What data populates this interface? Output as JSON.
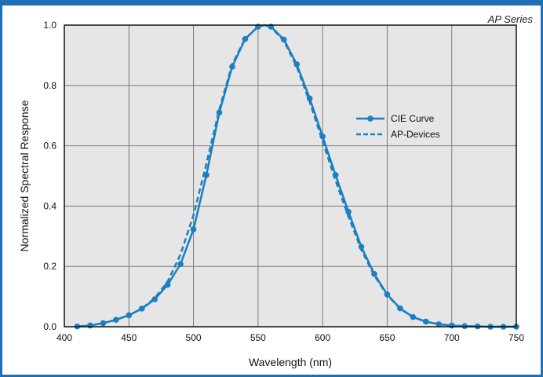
{
  "header": {
    "series_tag": "AP Series"
  },
  "colors": {
    "frame": "#1f6fb2",
    "series": "#1b7fc1",
    "plot_bg": "#e6e6e6",
    "grid": "#7a7a7a"
  },
  "chart_data": {
    "type": "line",
    "xlabel": "Wavelength (nm)",
    "ylabel": "Normalized Spectral Response",
    "xlim": [
      400,
      750
    ],
    "ylim": [
      0.0,
      1.0
    ],
    "xticks": [
      "400",
      "450",
      "500",
      "550",
      "600",
      "650",
      "700",
      "750"
    ],
    "yticks": [
      "0.0",
      "0.2",
      "0.4",
      "0.6",
      "0.8",
      "1.0"
    ],
    "grid": true,
    "legend_position": "right",
    "series": [
      {
        "name": "CIE Curve",
        "style": "solid-markers",
        "x": [
          410,
          420,
          430,
          440,
          450,
          460,
          470,
          480,
          490,
          500,
          510,
          520,
          530,
          540,
          550,
          555,
          560,
          570,
          580,
          590,
          600,
          610,
          620,
          630,
          640,
          650,
          660,
          670,
          680,
          690,
          700,
          710,
          720,
          730,
          740,
          750
        ],
        "y": [
          0.001,
          0.004,
          0.012,
          0.023,
          0.038,
          0.06,
          0.091,
          0.139,
          0.208,
          0.323,
          0.503,
          0.71,
          0.862,
          0.954,
          0.995,
          1.0,
          0.995,
          0.952,
          0.87,
          0.757,
          0.631,
          0.503,
          0.381,
          0.265,
          0.175,
          0.107,
          0.061,
          0.032,
          0.017,
          0.008,
          0.004,
          0.002,
          0.001,
          0.0,
          0.0,
          0.0
        ]
      },
      {
        "name": "AP-Devices",
        "style": "dashed",
        "x": [
          410,
          420,
          430,
          440,
          450,
          460,
          470,
          480,
          490,
          500,
          510,
          520,
          530,
          540,
          550,
          555,
          560,
          570,
          580,
          590,
          600,
          610,
          620,
          630,
          640,
          650,
          660,
          670,
          680,
          690,
          700,
          710,
          720,
          730,
          740,
          750
        ],
        "y": [
          0.001,
          0.004,
          0.012,
          0.023,
          0.038,
          0.06,
          0.095,
          0.15,
          0.24,
          0.37,
          0.54,
          0.72,
          0.87,
          0.955,
          0.995,
          1.0,
          0.993,
          0.948,
          0.862,
          0.745,
          0.615,
          0.485,
          0.365,
          0.255,
          0.17,
          0.105,
          0.06,
          0.032,
          0.017,
          0.008,
          0.004,
          0.002,
          0.001,
          0.0,
          0.0,
          0.0
        ]
      }
    ]
  }
}
